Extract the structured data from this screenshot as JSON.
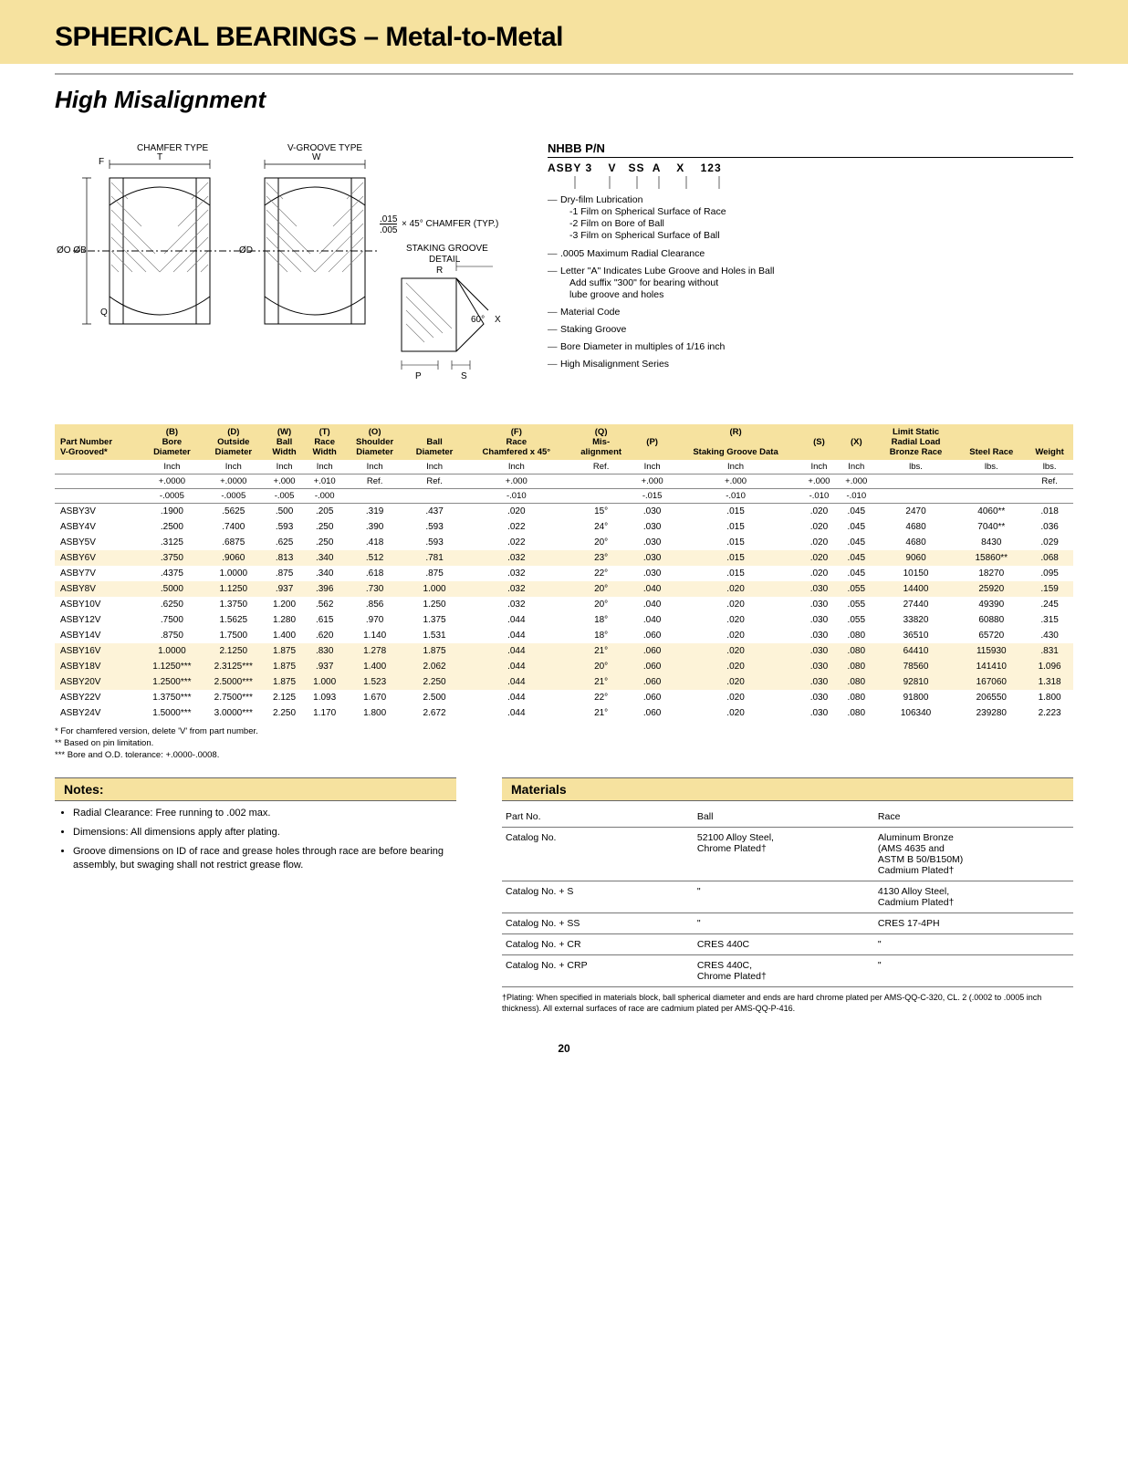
{
  "header": {
    "title": "SPHERICAL BEARINGS – Metal-to-Metal",
    "subtitle": "High Misalignment",
    "header_bg": "#f6e29f"
  },
  "diagram": {
    "chamfer_label": "CHAMFER TYPE",
    "vgroove_label": "V-GROOVE TYPE",
    "labels": {
      "F": "F",
      "T": "T",
      "W": "W",
      "OO": "ØO ØB",
      "OD": "ØD",
      "Q": "Q",
      "chamfer_note_a": ".015",
      "chamfer_note_b": ".005",
      "chamfer_note_c": "× 45° CHAMFER (TYP.)",
      "staking_title": "STAKING GROOVE",
      "staking_sub": "DETAIL",
      "R": "R",
      "P": "P",
      "S": "S",
      "X": "X",
      "angle60": "60°"
    }
  },
  "part_number": {
    "heading": "NHBB P/N",
    "codes": "ASBY 3    V   SS  A    X    123",
    "legend": [
      {
        "text": "Dry-film Lubrication",
        "sub": [
          "-1 Film on Spherical Surface of Race",
          "-2 Film on Bore of Ball",
          "-3 Film on Spherical Surface of Ball"
        ]
      },
      {
        "text": ".0005 Maximum Radial Clearance"
      },
      {
        "text": "Letter \"A\" Indicates Lube Groove and Holes in Ball",
        "sub": [
          "Add suffix \"300\" for bearing without",
          "lube groove and holes"
        ]
      },
      {
        "text": "Material Code"
      },
      {
        "text": "Staking Groove"
      },
      {
        "text": "Bore Diameter in multiples of 1/16 inch"
      },
      {
        "text": "High Misalignment Series"
      }
    ]
  },
  "main_table": {
    "row_alt_bg": "#fdf3d8",
    "header": {
      "part": [
        "Part Number",
        "V-Grooved*"
      ],
      "B": [
        "(B)",
        "Bore",
        "Diameter"
      ],
      "D": [
        "(D)",
        "Outside",
        "Diameter"
      ],
      "W": [
        "(W)",
        "Ball",
        "Width"
      ],
      "T": [
        "(T)",
        "Race",
        "Width"
      ],
      "O": [
        "(O)",
        "Shoulder",
        "Diameter"
      ],
      "Ball": [
        "",
        "Ball",
        "Diameter"
      ],
      "F": [
        "(F)",
        "Race",
        "Chamfered x 45°"
      ],
      "Q": [
        "(Q)",
        "Mis-",
        "alignment"
      ],
      "P": "(P)",
      "R": "(R)",
      "S": "(S)",
      "X": "(X)",
      "staking_group": "Staking Groove Data",
      "limit_group": [
        "Limit Static",
        "Radial Load"
      ],
      "bronze": "Bronze Race",
      "steel": "Steel Race",
      "weight": "Weight"
    },
    "units": [
      [
        "",
        "Inch",
        "Inch",
        "Inch",
        "Inch",
        "Inch",
        "Inch",
        "Inch",
        "Ref.",
        "Inch",
        "Inch",
        "Inch",
        "Inch",
        "lbs.",
        "lbs.",
        "lbs."
      ],
      [
        "",
        "+.0000",
        "+.0000",
        "+.000",
        "+.010",
        "Ref.",
        "Ref.",
        "+.000",
        "",
        "+.000",
        "+.000",
        "+.000",
        "+.000",
        "",
        "",
        "Ref."
      ],
      [
        "",
        "-.0005",
        "-.0005",
        "-.005",
        "-.000",
        "",
        "",
        "-.010",
        "",
        "-.015",
        "-.010",
        "-.010",
        "-.010",
        "",
        "",
        ""
      ]
    ],
    "rows": [
      [
        "ASBY3V",
        ".1900",
        ".5625",
        ".500",
        ".205",
        ".319",
        ".437",
        ".020",
        "15°",
        ".030",
        ".015",
        ".020",
        ".045",
        "2470",
        "4060**",
        ".018"
      ],
      [
        "ASBY4V",
        ".2500",
        ".7400",
        ".593",
        ".250",
        ".390",
        ".593",
        ".022",
        "24°",
        ".030",
        ".015",
        ".020",
        ".045",
        "4680",
        "7040**",
        ".036"
      ],
      [
        "ASBY5V",
        ".3125",
        ".6875",
        ".625",
        ".250",
        ".418",
        ".593",
        ".022",
        "20°",
        ".030",
        ".015",
        ".020",
        ".045",
        "4680",
        "8430",
        ".029"
      ],
      [
        "ASBY6V",
        ".3750",
        ".9060",
        ".813",
        ".340",
        ".512",
        ".781",
        ".032",
        "23°",
        ".030",
        ".015",
        ".020",
        ".045",
        "9060",
        "15860**",
        ".068"
      ],
      [
        "ASBY7V",
        ".4375",
        "1.0000",
        ".875",
        ".340",
        ".618",
        ".875",
        ".032",
        "22°",
        ".030",
        ".015",
        ".020",
        ".045",
        "10150",
        "18270",
        ".095"
      ],
      [
        "ASBY8V",
        ".5000",
        "1.1250",
        ".937",
        ".396",
        ".730",
        "1.000",
        ".032",
        "20°",
        ".040",
        ".020",
        ".030",
        ".055",
        "14400",
        "25920",
        ".159"
      ],
      [
        "ASBY10V",
        ".6250",
        "1.3750",
        "1.200",
        ".562",
        ".856",
        "1.250",
        ".032",
        "20°",
        ".040",
        ".020",
        ".030",
        ".055",
        "27440",
        "49390",
        ".245"
      ],
      [
        "ASBY12V",
        ".7500",
        "1.5625",
        "1.280",
        ".615",
        ".970",
        "1.375",
        ".044",
        "18°",
        ".040",
        ".020",
        ".030",
        ".055",
        "33820",
        "60880",
        ".315"
      ],
      [
        "ASBY14V",
        ".8750",
        "1.7500",
        "1.400",
        ".620",
        "1.140",
        "1.531",
        ".044",
        "18°",
        ".060",
        ".020",
        ".030",
        ".080",
        "36510",
        "65720",
        ".430"
      ],
      [
        "ASBY16V",
        "1.0000",
        "2.1250",
        "1.875",
        ".830",
        "1.278",
        "1.875",
        ".044",
        "21°",
        ".060",
        ".020",
        ".030",
        ".080",
        "64410",
        "115930",
        ".831"
      ],
      [
        "ASBY18V",
        "1.1250***",
        "2.3125***",
        "1.875",
        ".937",
        "1.400",
        "2.062",
        ".044",
        "20°",
        ".060",
        ".020",
        ".030",
        ".080",
        "78560",
        "141410",
        "1.096"
      ],
      [
        "ASBY20V",
        "1.2500***",
        "2.5000***",
        "1.875",
        "1.000",
        "1.523",
        "2.250",
        ".044",
        "21°",
        ".060",
        ".020",
        ".030",
        ".080",
        "92810",
        "167060",
        "1.318"
      ],
      [
        "ASBY22V",
        "1.3750***",
        "2.7500***",
        "2.125",
        "1.093",
        "1.670",
        "2.500",
        ".044",
        "22°",
        ".060",
        ".020",
        ".030",
        ".080",
        "91800",
        "206550",
        "1.800"
      ],
      [
        "ASBY24V",
        "1.5000***",
        "3.0000***",
        "2.250",
        "1.170",
        "1.800",
        "2.672",
        ".044",
        "21°",
        ".060",
        ".020",
        ".030",
        ".080",
        "106340",
        "239280",
        "2.223"
      ]
    ],
    "alt_rows": [
      3,
      5,
      9,
      10,
      11
    ]
  },
  "footnotes": [
    "*   For chamfered version, delete 'V' from part number.",
    "**  Based on pin limitation.",
    "*** Bore and O.D. tolerance: +.0000-.0008."
  ],
  "notes": {
    "heading": "Notes:",
    "items": [
      "Radial Clearance: Free running to .002 max.",
      "Dimensions: All dimensions apply after plating.",
      "Groove dimensions on ID of race and grease holes through race are before bearing assembly, but swaging shall not restrict grease flow."
    ]
  },
  "materials": {
    "heading": "Materials",
    "columns": [
      "Part No.",
      "Ball",
      "Race"
    ],
    "rows": [
      [
        "Catalog No.",
        "52100 Alloy Steel,\nChrome Plated†",
        "Aluminum Bronze\n(AMS 4635 and\nASTM B 50/B150M)\nCadmium Plated†"
      ],
      [
        "Catalog No. + S",
        "\"",
        "4130 Alloy Steel,\nCadmium Plated†"
      ],
      [
        "Catalog No. + SS",
        "\"",
        "CRES 17-4PH"
      ],
      [
        "Catalog No. + CR",
        "CRES 440C",
        "\""
      ],
      [
        "Catalog No. + CRP",
        "CRES 440C,\nChrome Plated†",
        "\""
      ]
    ],
    "footnote": "†Plating: When specified in materials block, ball spherical diameter and ends are hard chrome plated per AMS-QQ-C-320, CL. 2 (.0002 to .0005 inch thickness). All external surfaces of race are cadmium plated per AMS-QQ-P-416."
  },
  "page_number": "20"
}
